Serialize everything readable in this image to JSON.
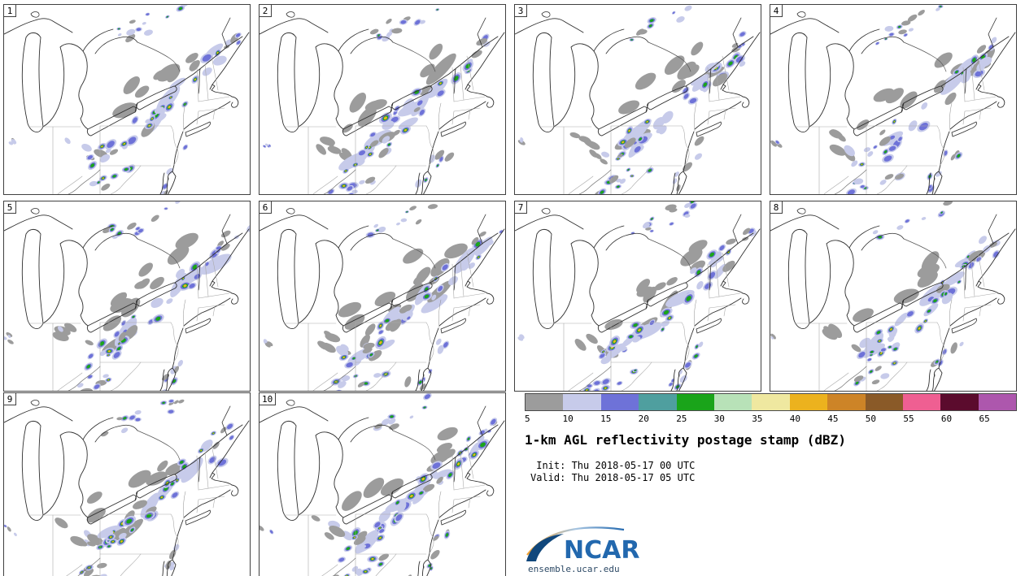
{
  "figure": {
    "title": "1-km AGL reflectivity postage stamp (dBZ)",
    "init_line": " Init: Thu 2018-05-17 00 UTC",
    "valid_line": "Valid: Thu 2018-05-17 05 UTC"
  },
  "panels": {
    "labels": [
      "1",
      "2",
      "3",
      "4",
      "5",
      "6",
      "7",
      "8",
      "9",
      "10"
    ]
  },
  "legend": {
    "ticks": [
      "5",
      "10",
      "15",
      "20",
      "25",
      "30",
      "35",
      "40",
      "45",
      "50",
      "55",
      "60",
      "65"
    ],
    "colors": [
      "#9c9c9c",
      "#c7cbea",
      "#6e72d8",
      "#4f9f9f",
      "#1aa41a",
      "#b8e2b8",
      "#efe8a0",
      "#ecb21e",
      "#cd8427",
      "#8a5a28",
      "#ef5f92",
      "#5b0b2d",
      "#ad57ad"
    ]
  },
  "branding": {
    "logo_text": "NCAR",
    "url": "ensemble.ucar.edu",
    "logo_blue": "#2268ae"
  }
}
